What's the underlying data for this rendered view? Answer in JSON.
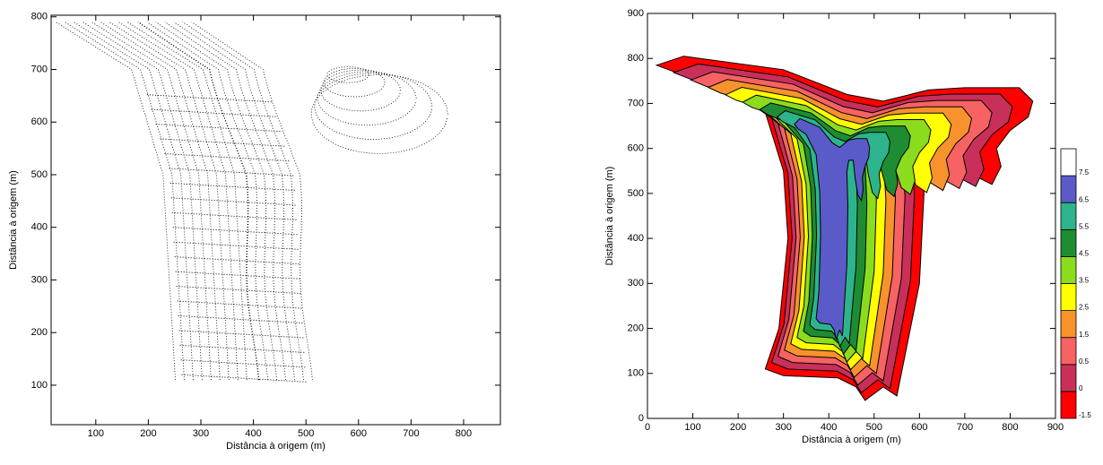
{
  "chart_data": [
    {
      "type": "survey",
      "xlabel": "Distância à origem (m)",
      "ylabel": "Distância à origem (m)",
      "xlim": [
        15,
        870
      ],
      "ylim": [
        25,
        803
      ],
      "xticks": [
        100,
        200,
        300,
        400,
        500,
        600,
        700,
        800
      ],
      "yticks": [
        100,
        200,
        300,
        400,
        500,
        600,
        700,
        800
      ],
      "color": "#000000"
    },
    {
      "type": "contour",
      "xlabel": "Distância à origem (m)",
      "ylabel": "Distância à origem (m)",
      "xlim": [
        0,
        900
      ],
      "ylim": [
        0,
        900
      ],
      "xticks": [
        0,
        100,
        200,
        300,
        400,
        500,
        600,
        700,
        800,
        900
      ],
      "yticks": [
        0,
        100,
        200,
        300,
        400,
        500,
        600,
        700,
        800,
        900
      ],
      "levels": [
        -1.5,
        0,
        0.5,
        1.5,
        2.5,
        3.5,
        4.5,
        5.5,
        6.5,
        7.5
      ],
      "colors": [
        "#ff0000",
        "#c8305a",
        "#f76262",
        "#f7922d",
        "#ffff00",
        "#8cdc1e",
        "#1e8c32",
        "#2db48c",
        "#5a5ac8",
        "#ffffff"
      ]
    }
  ]
}
